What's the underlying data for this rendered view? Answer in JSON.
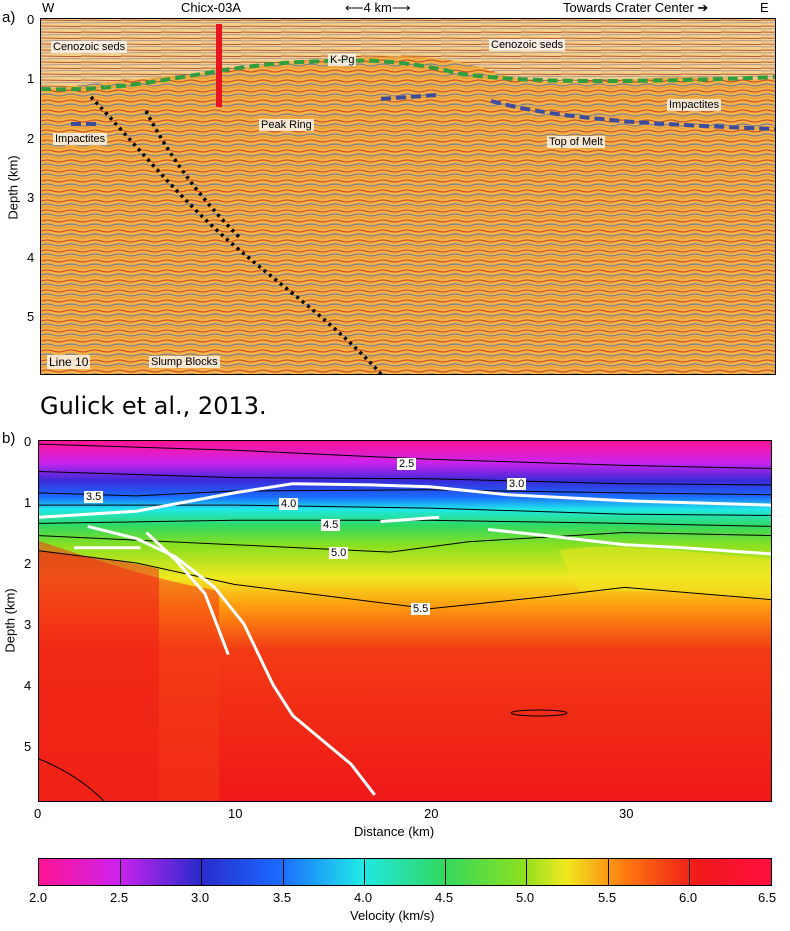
{
  "panel_a": {
    "letter": "a)",
    "top_left": "W",
    "well": "Chicx-03A",
    "scale": "4 km",
    "direction": "Towards Crater Center",
    "top_right": "E",
    "y_ticks": [
      "0",
      "1",
      "2",
      "3",
      "4",
      "5"
    ],
    "y_label": "Depth (km)",
    "annotations": {
      "cenozoic_left": "Cenozoic seds",
      "cenozoic_right": "Cenozoic seds",
      "kpg": "K-Pg",
      "impactites_left": "Impactites",
      "impactites_right": "Impactites",
      "peak_ring": "Peak Ring",
      "top_of_melt": "Top of Melt",
      "line": "Line 10",
      "slump_blocks": "Slump Blocks"
    },
    "colors": {
      "kpg": "#2e9e3e",
      "melt": "#3c4da0",
      "well": "#e8141e",
      "fault": "#000000"
    }
  },
  "citation": "Gulick et al., 2013.",
  "panel_b": {
    "letter": "b)",
    "y_label": "Depth (km)",
    "x_label": "Distance (km)",
    "y_ticks": [
      "0",
      "1",
      "2",
      "3",
      "4",
      "5"
    ],
    "x_ticks": [
      "0",
      "10",
      "20",
      "30"
    ],
    "contour_labels": [
      "2.5",
      "3.0",
      "3.5",
      "4.0",
      "4.5",
      "5.0",
      "5.5"
    ]
  },
  "colorbar": {
    "label": "Velocity (km/s)",
    "ticks": [
      "2.0",
      "2.5",
      "3.0",
      "3.5",
      "4.0",
      "4.5",
      "5.0",
      "5.5",
      "6.0",
      "6.5"
    ],
    "colors": [
      "#ff1493",
      "#cc22ee",
      "#2020cc",
      "#1a6bff",
      "#20e8e8",
      "#30d860",
      "#8ae020",
      "#f0e820",
      "#ff7a10",
      "#f01818",
      "#ff1040"
    ]
  },
  "chart_data": {
    "type": "heatmap",
    "x_label": "Distance (km)",
    "y_label": "Depth (km)",
    "xlim": [
      0,
      37.5
    ],
    "ylim": [
      0,
      5.9
    ],
    "colorbar_range": [
      2.0,
      6.5
    ],
    "colorbar_label": "Velocity (km/s)",
    "contours": [
      {
        "level": 2.5,
        "points": [
          [
            0,
            0.05
          ],
          [
            10,
            0.15
          ],
          [
            20,
            0.3
          ],
          [
            30,
            0.4
          ],
          [
            37.5,
            0.45
          ]
        ]
      },
      {
        "level": 3.0,
        "points": [
          [
            0,
            0.5
          ],
          [
            10,
            0.6
          ],
          [
            20,
            0.62
          ],
          [
            30,
            0.7
          ],
          [
            37.5,
            0.72
          ]
        ]
      },
      {
        "level": 3.5,
        "points": [
          [
            0,
            0.85
          ],
          [
            5,
            0.9
          ],
          [
            10,
            0.82
          ],
          [
            20,
            0.8
          ],
          [
            30,
            0.85
          ],
          [
            37.5,
            0.88
          ]
        ]
      },
      {
        "level": 4.0,
        "points": [
          [
            0,
            1.05
          ],
          [
            10,
            1.05
          ],
          [
            20,
            1.1
          ],
          [
            30,
            1.2
          ],
          [
            37.5,
            1.22
          ]
        ]
      },
      {
        "level": 4.5,
        "points": [
          [
            0,
            1.35
          ],
          [
            10,
            1.3
          ],
          [
            20,
            1.3
          ],
          [
            30,
            1.35
          ],
          [
            37.5,
            1.4
          ]
        ]
      },
      {
        "level": 5.0,
        "points": [
          [
            0,
            1.55
          ],
          [
            10,
            1.7
          ],
          [
            18,
            1.82
          ],
          [
            22,
            1.65
          ],
          [
            30,
            1.5
          ],
          [
            37.5,
            1.55
          ]
        ]
      },
      {
        "level": 5.5,
        "points": [
          [
            0,
            1.8
          ],
          [
            5,
            2.0
          ],
          [
            10,
            2.35
          ],
          [
            20,
            2.75
          ],
          [
            26,
            2.55
          ],
          [
            30,
            2.4
          ],
          [
            37.5,
            2.6
          ]
        ]
      }
    ],
    "overlay_lines": [
      {
        "points": [
          [
            0,
            1.25
          ],
          [
            5,
            1.15
          ],
          [
            10,
            0.85
          ],
          [
            13,
            0.7
          ],
          [
            17,
            0.72
          ],
          [
            20,
            0.75
          ],
          [
            24,
            0.88
          ],
          [
            30,
            0.98
          ],
          [
            37.5,
            1.05
          ]
        ]
      },
      {
        "points": [
          [
            2.5,
            1.4
          ],
          [
            5,
            1.6
          ],
          [
            7,
            1.9
          ],
          [
            9,
            2.4
          ],
          [
            10.5,
            3.0
          ],
          [
            12,
            4.0
          ],
          [
            13,
            4.5
          ],
          [
            16,
            5.3
          ],
          [
            17.2,
            5.8
          ]
        ]
      },
      {
        "points": [
          [
            5.5,
            1.5
          ],
          [
            7,
            1.95
          ],
          [
            8.5,
            2.5
          ],
          [
            9.7,
            3.5
          ]
        ]
      }
    ]
  }
}
